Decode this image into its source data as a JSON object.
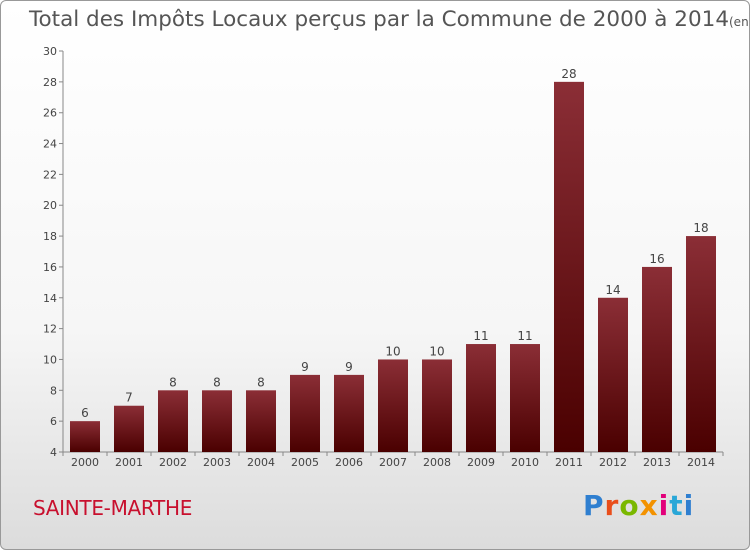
{
  "title": "Total des Impôts Locaux perçus par la Commune de 2000 à 2014",
  "title_unit": "(en milliers d'€)",
  "commune": "SAINTE-MARTHE",
  "logo_letters": [
    "P",
    "r",
    "o",
    "x",
    "i",
    "t",
    "i"
  ],
  "colors": {
    "bar_top": "#8b2e36",
    "bar_bottom": "#4a0000",
    "commune_text": "#c8102e"
  },
  "chart_data": {
    "type": "bar",
    "title": "Total des Impôts Locaux perçus par la Commune de 2000 à 2014",
    "xlabel": "",
    "ylabel": "",
    "categories": [
      "2000",
      "2001",
      "2002",
      "2003",
      "2004",
      "2005",
      "2006",
      "2007",
      "2008",
      "2009",
      "2010",
      "2011",
      "2012",
      "2013",
      "2014"
    ],
    "values": [
      6,
      7,
      8,
      8,
      8,
      9,
      9,
      10,
      10,
      11,
      11,
      28,
      14,
      16,
      18
    ],
    "ylim": [
      4,
      30
    ],
    "yticks": [
      4,
      6,
      8,
      10,
      12,
      14,
      16,
      18,
      20,
      22,
      24,
      26,
      28,
      30
    ],
    "grid": false,
    "legend": "none"
  }
}
